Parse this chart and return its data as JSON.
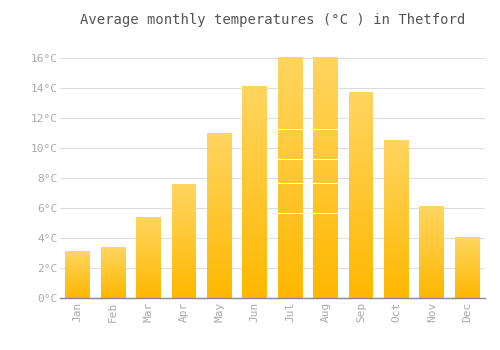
{
  "months": [
    "Jan",
    "Feb",
    "Mar",
    "Apr",
    "May",
    "Jun",
    "Jul",
    "Aug",
    "Sep",
    "Oct",
    "Nov",
    "Dec"
  ],
  "temperatures": [
    3.1,
    3.4,
    5.4,
    7.6,
    11.0,
    14.1,
    16.0,
    16.0,
    13.7,
    10.5,
    6.1,
    4.0
  ],
  "bar_color_bottom": "#FFB700",
  "bar_color_top": "#FFD060",
  "background_color": "#FFFFFF",
  "plot_bg_color": "#FFFFFF",
  "grid_color": "#DDDDDD",
  "title": "Average monthly temperatures (°C ) in Thetford",
  "ylabel_ticks": [
    "0°C",
    "2°C",
    "4°C",
    "6°C",
    "8°C",
    "10°C",
    "12°C",
    "14°C",
    "16°C"
  ],
  "ytick_values": [
    0,
    2,
    4,
    6,
    8,
    10,
    12,
    14,
    16
  ],
  "ylim": [
    0,
    17.5
  ],
  "title_fontsize": 10,
  "tick_fontsize": 8,
  "tick_font_color": "#AAAAAA",
  "title_color": "#555555",
  "font_family": "monospace"
}
